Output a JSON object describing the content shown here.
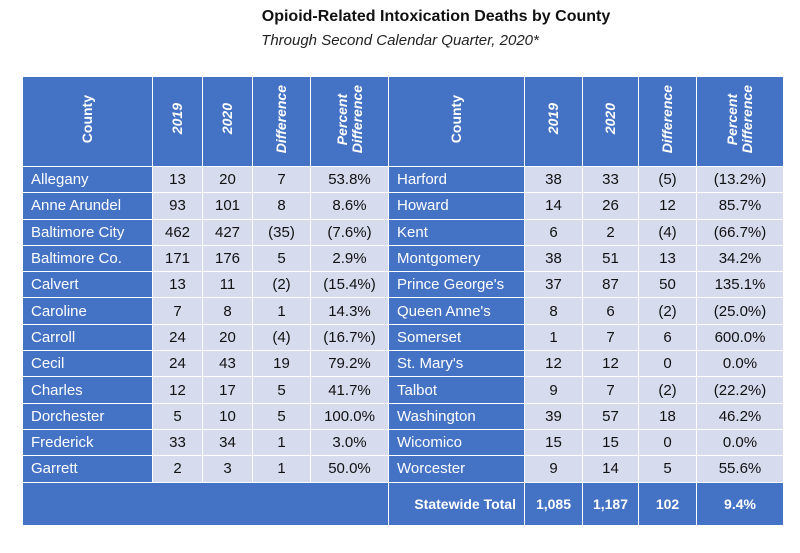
{
  "title": "Opioid-Related Intoxication Deaths by County",
  "subtitle": "Through Second Calendar Quarter, 2020*",
  "headers": {
    "county": "County",
    "y2019": "2019",
    "y2020": "2020",
    "difference": "Difference",
    "percent_line1": "Percent",
    "percent_line2": "Difference"
  },
  "rows": [
    {
      "left": {
        "county": "Allegany",
        "y2019": "13",
        "y2020": "20",
        "diff": "7",
        "pct": "53.8%"
      },
      "right": {
        "county": "Harford",
        "y2019": "38",
        "y2020": "33",
        "diff": "(5)",
        "pct": "(13.2%)"
      }
    },
    {
      "left": {
        "county": "Anne Arundel",
        "y2019": "93",
        "y2020": "101",
        "diff": "8",
        "pct": "8.6%"
      },
      "right": {
        "county": "Howard",
        "y2019": "14",
        "y2020": "26",
        "diff": "12",
        "pct": "85.7%"
      }
    },
    {
      "left": {
        "county": "Baltimore City",
        "y2019": "462",
        "y2020": "427",
        "diff": "(35)",
        "pct": "(7.6%)"
      },
      "right": {
        "county": "Kent",
        "y2019": "6",
        "y2020": "2",
        "diff": "(4)",
        "pct": "(66.7%)"
      }
    },
    {
      "left": {
        "county": "Baltimore Co.",
        "y2019": "171",
        "y2020": "176",
        "diff": "5",
        "pct": "2.9%"
      },
      "right": {
        "county": "Montgomery",
        "y2019": "38",
        "y2020": "51",
        "diff": "13",
        "pct": "34.2%"
      }
    },
    {
      "left": {
        "county": "Calvert",
        "y2019": "13",
        "y2020": "11",
        "diff": "(2)",
        "pct": "(15.4%)"
      },
      "right": {
        "county": "Prince George's",
        "y2019": "37",
        "y2020": "87",
        "diff": "50",
        "pct": "135.1%"
      }
    },
    {
      "left": {
        "county": "Caroline",
        "y2019": "7",
        "y2020": "8",
        "diff": "1",
        "pct": "14.3%"
      },
      "right": {
        "county": "Queen Anne's",
        "y2019": "8",
        "y2020": "6",
        "diff": "(2)",
        "pct": "(25.0%)"
      }
    },
    {
      "left": {
        "county": "Carroll",
        "y2019": "24",
        "y2020": "20",
        "diff": "(4)",
        "pct": "(16.7%)"
      },
      "right": {
        "county": "Somerset",
        "y2019": "1",
        "y2020": "7",
        "diff": "6",
        "pct": "600.0%"
      }
    },
    {
      "left": {
        "county": "Cecil",
        "y2019": "24",
        "y2020": "43",
        "diff": "19",
        "pct": "79.2%"
      },
      "right": {
        "county": "St. Mary's",
        "y2019": "12",
        "y2020": "12",
        "diff": "0",
        "pct": "0.0%"
      }
    },
    {
      "left": {
        "county": "Charles",
        "y2019": "12",
        "y2020": "17",
        "diff": "5",
        "pct": "41.7%"
      },
      "right": {
        "county": "Talbot",
        "y2019": "9",
        "y2020": "7",
        "diff": "(2)",
        "pct": "(22.2%)"
      }
    },
    {
      "left": {
        "county": "Dorchester",
        "y2019": "5",
        "y2020": "10",
        "diff": "5",
        "pct": "100.0%"
      },
      "right": {
        "county": "Washington",
        "y2019": "39",
        "y2020": "57",
        "diff": "18",
        "pct": "46.2%"
      }
    },
    {
      "left": {
        "county": "Frederick",
        "y2019": "33",
        "y2020": "34",
        "diff": "1",
        "pct": "3.0%"
      },
      "right": {
        "county": "Wicomico",
        "y2019": "15",
        "y2020": "15",
        "diff": "0",
        "pct": "0.0%"
      }
    },
    {
      "left": {
        "county": "Garrett",
        "y2019": "2",
        "y2020": "3",
        "diff": "1",
        "pct": "50.0%"
      },
      "right": {
        "county": "Worcester",
        "y2019": "9",
        "y2020": "14",
        "diff": "5",
        "pct": "55.6%"
      }
    }
  ],
  "total": {
    "label": "Statewide Total",
    "y2019": "1,085",
    "y2020": "1,187",
    "diff": "102",
    "pct": "9.4%"
  }
}
